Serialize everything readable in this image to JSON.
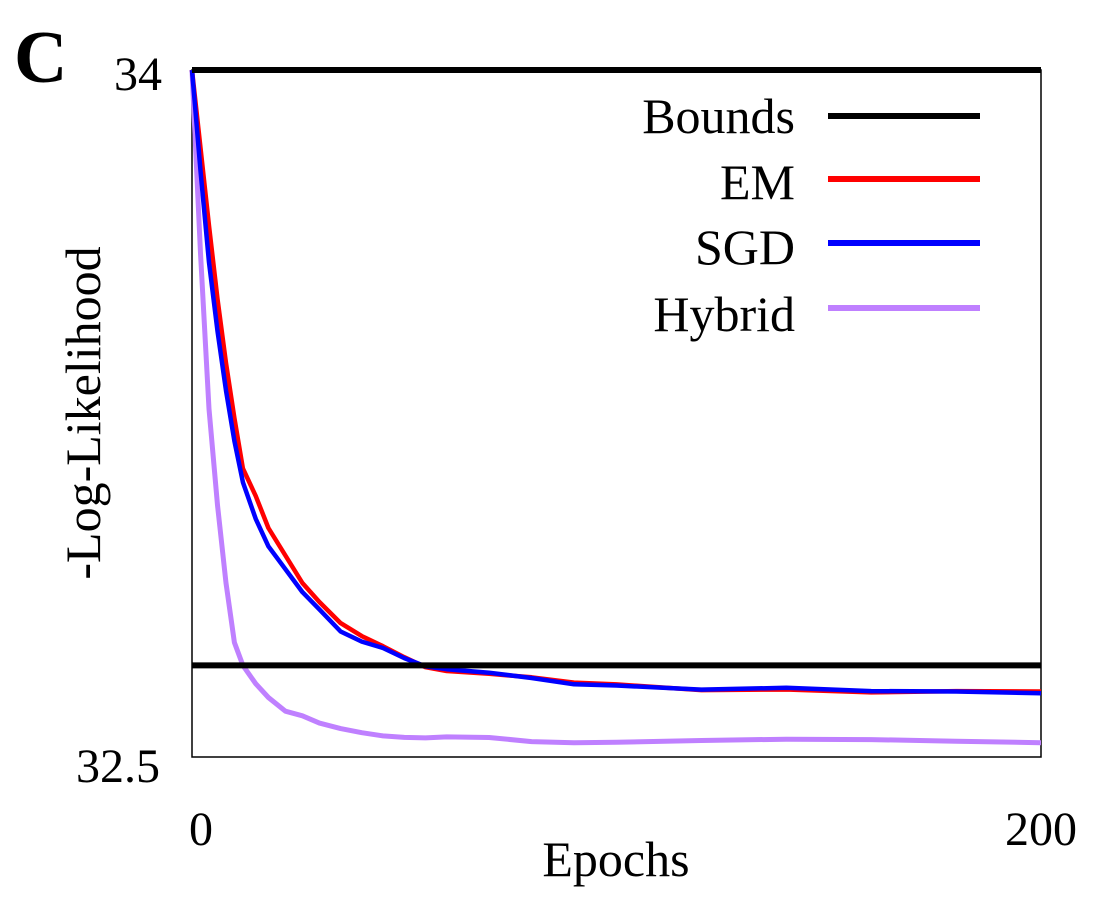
{
  "panel_label": "C",
  "chart_data": {
    "type": "line",
    "xlabel": "Epochs",
    "ylabel": "-Log-Likelihood",
    "xlim": [
      0,
      200
    ],
    "ylim": [
      32.5,
      34
    ],
    "xticks": [
      "0",
      "200"
    ],
    "yticks": [
      "32.5",
      "34"
    ],
    "grid": false,
    "legend_position": "top-right",
    "bounds": [
      34,
      32.7
    ],
    "series": [
      {
        "name": "Bounds",
        "color": "#000000",
        "kind": "hlines",
        "values": [
          34,
          32.7
        ]
      },
      {
        "name": "EM",
        "color": "#ff0000",
        "x": [
          0,
          2,
          4,
          6,
          8,
          10,
          12,
          15,
          18,
          22,
          26,
          30,
          35,
          40,
          45,
          50,
          55,
          60,
          70,
          80,
          90,
          100,
          120,
          140,
          160,
          180,
          200
        ],
        "y": [
          34.0,
          33.83,
          33.66,
          33.5,
          33.36,
          33.24,
          33.13,
          33.07,
          33.0,
          32.94,
          32.88,
          32.84,
          32.79,
          32.76,
          32.74,
          32.72,
          32.7,
          32.69,
          32.68,
          32.67,
          32.66,
          32.66,
          32.65,
          32.65,
          32.64,
          32.64,
          32.64
        ]
      },
      {
        "name": "SGD",
        "color": "#0000ff",
        "x": [
          0,
          2,
          4,
          6,
          8,
          10,
          12,
          15,
          18,
          22,
          26,
          30,
          35,
          40,
          45,
          50,
          55,
          60,
          70,
          80,
          90,
          100,
          120,
          140,
          160,
          180,
          200
        ],
        "y": [
          34.0,
          33.78,
          33.58,
          33.43,
          33.3,
          33.19,
          33.1,
          33.02,
          32.96,
          32.91,
          32.86,
          32.82,
          32.77,
          32.75,
          32.74,
          32.72,
          32.7,
          32.69,
          32.68,
          32.67,
          32.66,
          32.66,
          32.65,
          32.65,
          32.64,
          32.64,
          32.64
        ]
      },
      {
        "name": "Hybrid",
        "color": "#bf80ff",
        "x": [
          0,
          2,
          4,
          6,
          8,
          10,
          12,
          15,
          18,
          22,
          26,
          30,
          35,
          40,
          45,
          50,
          55,
          60,
          70,
          80,
          90,
          100,
          120,
          140,
          160,
          180,
          200
        ],
        "y": [
          34.0,
          33.6,
          33.26,
          33.05,
          32.88,
          32.75,
          32.7,
          32.66,
          32.63,
          32.6,
          32.59,
          32.57,
          32.56,
          32.555,
          32.55,
          32.545,
          32.54,
          32.54,
          32.54,
          32.535,
          32.535,
          32.535,
          32.535,
          32.535,
          32.535,
          32.535,
          32.535
        ]
      }
    ]
  }
}
